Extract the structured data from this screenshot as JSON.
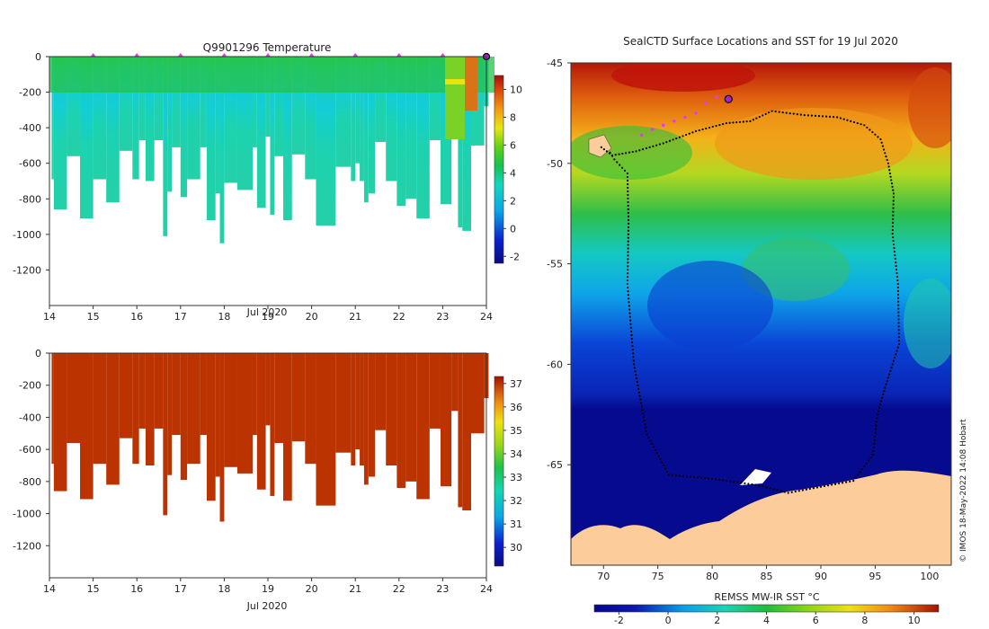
{
  "chart_data": [
    {
      "type": "heatmap",
      "panel": "temperature-section",
      "title": "Q9901296  Temperature",
      "xlabel": "Jul 2020",
      "ylabel": "",
      "xlim": [
        14,
        24
      ],
      "ylim": [
        -1400,
        0
      ],
      "xticks": [
        14,
        15,
        16,
        17,
        18,
        19,
        20,
        21,
        22,
        23,
        24
      ],
      "yticks": [
        0,
        -200,
        -400,
        -600,
        -800,
        -1000,
        -1200
      ],
      "colorbar": {
        "min": -2.5,
        "max": 11,
        "ticks": [
          -2,
          0,
          2,
          4,
          6,
          8,
          10
        ]
      },
      "cast_markers": [
        15,
        16,
        17,
        18,
        19,
        20,
        21,
        22,
        23,
        24
      ],
      "profiles": [
        {
          "t0": 14.05,
          "t1": 14.1,
          "depth": 690
        },
        {
          "t0": 14.1,
          "t1": 14.4,
          "depth": 860
        },
        {
          "t0": 14.4,
          "t1": 14.7,
          "depth": 560
        },
        {
          "t0": 14.7,
          "t1": 15.0,
          "depth": 910
        },
        {
          "t0": 15.0,
          "t1": 15.3,
          "depth": 690
        },
        {
          "t0": 15.3,
          "t1": 15.6,
          "depth": 820
        },
        {
          "t0": 15.6,
          "t1": 15.9,
          "depth": 530
        },
        {
          "t0": 15.9,
          "t1": 16.05,
          "depth": 690
        },
        {
          "t0": 16.05,
          "t1": 16.2,
          "depth": 470
        },
        {
          "t0": 16.2,
          "t1": 16.4,
          "depth": 700
        },
        {
          "t0": 16.4,
          "t1": 16.6,
          "depth": 470
        },
        {
          "t0": 16.6,
          "t1": 16.7,
          "depth": 1010
        },
        {
          "t0": 16.7,
          "t1": 16.8,
          "depth": 760
        },
        {
          "t0": 16.8,
          "t1": 17.0,
          "depth": 510
        },
        {
          "t0": 17.0,
          "t1": 17.15,
          "depth": 790
        },
        {
          "t0": 17.15,
          "t1": 17.45,
          "depth": 690
        },
        {
          "t0": 17.45,
          "t1": 17.6,
          "depth": 510
        },
        {
          "t0": 17.6,
          "t1": 17.8,
          "depth": 920
        },
        {
          "t0": 17.8,
          "t1": 17.9,
          "depth": 770
        },
        {
          "t0": 17.9,
          "t1": 18.0,
          "depth": 1050
        },
        {
          "t0": 18.0,
          "t1": 18.3,
          "depth": 710
        },
        {
          "t0": 18.3,
          "t1": 18.65,
          "depth": 750
        },
        {
          "t0": 18.65,
          "t1": 18.75,
          "depth": 510
        },
        {
          "t0": 18.75,
          "t1": 18.95,
          "depth": 850
        },
        {
          "t0": 18.95,
          "t1": 19.05,
          "depth": 450
        },
        {
          "t0": 19.05,
          "t1": 19.15,
          "depth": 890
        },
        {
          "t0": 19.15,
          "t1": 19.35,
          "depth": 560
        },
        {
          "t0": 19.35,
          "t1": 19.55,
          "depth": 920
        },
        {
          "t0": 19.55,
          "t1": 19.85,
          "depth": 550
        },
        {
          "t0": 19.85,
          "t1": 20.1,
          "depth": 690
        },
        {
          "t0": 20.1,
          "t1": 20.55,
          "depth": 950
        },
        {
          "t0": 20.55,
          "t1": 20.9,
          "depth": 620
        },
        {
          "t0": 20.9,
          "t1": 21.0,
          "depth": 700
        },
        {
          "t0": 21.0,
          "t1": 21.1,
          "depth": 600
        },
        {
          "t0": 21.1,
          "t1": 21.2,
          "depth": 700
        },
        {
          "t0": 21.2,
          "t1": 21.3,
          "depth": 820
        },
        {
          "t0": 21.3,
          "t1": 21.45,
          "depth": 770
        },
        {
          "t0": 21.45,
          "t1": 21.7,
          "depth": 480
        },
        {
          "t0": 21.7,
          "t1": 21.95,
          "depth": 700
        },
        {
          "t0": 21.95,
          "t1": 22.15,
          "depth": 840
        },
        {
          "t0": 22.15,
          "t1": 22.4,
          "depth": 800
        },
        {
          "t0": 22.4,
          "t1": 22.7,
          "depth": 910
        },
        {
          "t0": 22.7,
          "t1": 22.95,
          "depth": 470
        },
        {
          "t0": 22.95,
          "t1": 23.2,
          "depth": 830
        },
        {
          "t0": 23.2,
          "t1": 23.35,
          "depth": 360
        },
        {
          "t0": 23.35,
          "t1": 23.45,
          "depth": 960
        },
        {
          "t0": 23.45,
          "t1": 23.65,
          "depth": 980
        },
        {
          "t0": 23.65,
          "t1": 23.95,
          "depth": 500
        },
        {
          "t0": 23.95,
          "t1": 24.05,
          "depth": 280
        }
      ]
    },
    {
      "type": "heatmap",
      "panel": "salinity-section",
      "title": "",
      "xlabel": "Jul 2020",
      "ylabel": "",
      "xlim": [
        14,
        24
      ],
      "ylim": [
        -1400,
        0
      ],
      "xticks": [
        14,
        15,
        16,
        17,
        18,
        19,
        20,
        21,
        22,
        23,
        24
      ],
      "yticks": [
        0,
        -200,
        -400,
        -600,
        -800,
        -1000,
        -1200
      ],
      "colorbar": {
        "min": 29.2,
        "max": 37.3,
        "ticks": [
          30,
          31,
          32,
          33,
          34,
          35,
          36,
          37
        ]
      },
      "fill_color": "#bb3300"
    },
    {
      "type": "heatmap",
      "panel": "sst-map",
      "title": "SealCTD Surface Locations and SST for 19 Jul 2020",
      "xlabel": "",
      "ylabel": "",
      "xlim": [
        67,
        102
      ],
      "ylim": [
        -70,
        -45
      ],
      "xticks": [
        70,
        75,
        80,
        85,
        90,
        95,
        100
      ],
      "yticks": [
        -45,
        -50,
        -55,
        -60,
        -65
      ],
      "colorbar": {
        "label": "REMSS MW-IR SST °C",
        "min": -3,
        "max": 11,
        "ticks": [
          -2,
          0,
          2,
          4,
          6,
          8,
          10
        ]
      },
      "track": [
        [
          69.8,
          -49.2
        ],
        [
          70.8,
          -49.6
        ],
        [
          73,
          -49.4
        ],
        [
          75.5,
          -49.0
        ],
        [
          78.5,
          -48.4
        ],
        [
          81.3,
          -48.0
        ],
        [
          83.5,
          -47.9
        ],
        [
          85.5,
          -47.4
        ],
        [
          88.5,
          -47.6
        ],
        [
          91.5,
          -47.7
        ],
        [
          94,
          -48.1
        ],
        [
          95.5,
          -48.8
        ],
        [
          96.2,
          -50.0
        ],
        [
          96.7,
          -51.5
        ],
        [
          96.6,
          -53.5
        ],
        [
          97.1,
          -56
        ],
        [
          97.2,
          -59
        ],
        [
          96,
          -61
        ],
        [
          95.2,
          -62.5
        ],
        [
          94.8,
          -64.5
        ],
        [
          93,
          -65.8
        ],
        [
          90,
          -66.1
        ],
        [
          87,
          -66.4
        ],
        [
          84,
          -66
        ],
        [
          80,
          -65.7
        ],
        [
          76,
          -65.5
        ],
        [
          74,
          -63.5
        ],
        [
          72.8,
          -60
        ],
        [
          72.2,
          -56
        ],
        [
          72.3,
          -53
        ],
        [
          72.2,
          -50.5
        ],
        [
          71,
          -49.8
        ],
        [
          70.4,
          -49.3
        ]
      ],
      "recent_casts": [
        [
          73.5,
          -48.6
        ],
        [
          74.5,
          -48.3
        ],
        [
          75.5,
          -48.1
        ],
        [
          76.5,
          -47.9
        ],
        [
          77.5,
          -47.7
        ],
        [
          78.5,
          -47.5
        ],
        [
          79.4,
          -47.0
        ],
        [
          80.4,
          -46.7
        ]
      ],
      "latest_position": [
        81.5,
        -46.8
      ],
      "credit": "© IMOS 18-May-2022 14:08 Hobart"
    }
  ]
}
